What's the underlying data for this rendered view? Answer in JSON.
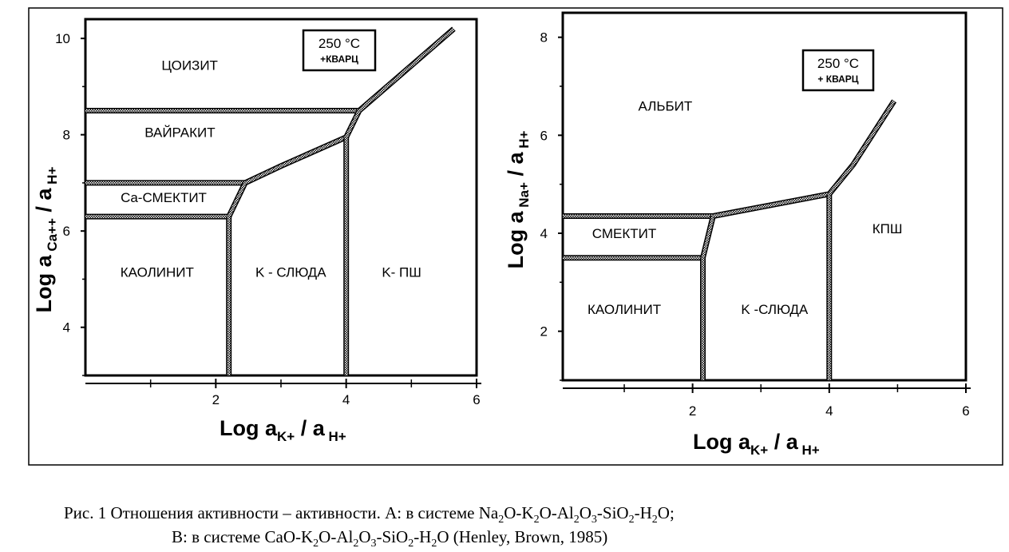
{
  "chart_data": [
    {
      "type": "phase-diagram",
      "panel": "left",
      "temperature_label": "250 °C",
      "note_label": "+КВАРЦ",
      "xlabel": {
        "main": "Log  a",
        "sub1": "K+",
        "sep": "/ a",
        "sub2": "H+"
      },
      "ylabel": {
        "main": "Log  a",
        "sub1": "Ca++",
        "sep": "/ a",
        "sub2": "H+"
      },
      "x_ticks": [
        "2",
        "4",
        "6"
      ],
      "y_ticks": [
        "4",
        "6",
        "8",
        "10"
      ],
      "xlim": [
        0,
        6
      ],
      "ylim": [
        3,
        10.4
      ],
      "fields": [
        {
          "name": "ЦОИЗИТ",
          "x": 1.6,
          "y": 9.35
        },
        {
          "name": "ВАЙРАКИТ",
          "x": 1.45,
          "y": 7.95
        },
        {
          "name": "Ca-СМЕКТИТ",
          "x": 1.2,
          "y": 6.6
        },
        {
          "name": "КАОЛИНИТ",
          "x": 1.1,
          "y": 5.05
        },
        {
          "name": "K - СЛЮДА",
          "x": 3.15,
          "y": 5.05
        },
        {
          "name": "K- ПШ",
          "x": 4.85,
          "y": 5.05
        }
      ],
      "boundaries": [
        {
          "name": "zoisite-wairakite",
          "points": [
            [
              0,
              8.5
            ],
            [
              4.2,
              8.5
            ]
          ]
        },
        {
          "name": "wairakite-smectite",
          "points": [
            [
              0,
              7.0
            ],
            [
              2.45,
              7.0
            ]
          ]
        },
        {
          "name": "smectite-kaolinite",
          "points": [
            [
              0,
              6.3
            ],
            [
              2.2,
              6.3
            ]
          ]
        },
        {
          "name": "kaolinite-mica",
          "points": [
            [
              2.2,
              3.0
            ],
            [
              2.2,
              6.3
            ]
          ]
        },
        {
          "name": "smectite-mica",
          "points": [
            [
              2.2,
              6.3
            ],
            [
              2.45,
              7.0
            ]
          ]
        },
        {
          "name": "wairakite-mica",
          "points": [
            [
              2.45,
              7.0
            ],
            [
              3.0,
              7.35
            ],
            [
              4.0,
              7.95
            ]
          ]
        },
        {
          "name": "mica-kfeldspar",
          "points": [
            [
              4.0,
              3.0
            ],
            [
              4.0,
              7.95
            ]
          ]
        },
        {
          "name": "wairakite-kfeldspar",
          "points": [
            [
              4.0,
              7.95
            ],
            [
              4.2,
              8.5
            ]
          ]
        },
        {
          "name": "zoisite-kfeldspar",
          "points": [
            [
              4.2,
              8.5
            ],
            [
              5.65,
              10.2
            ]
          ]
        }
      ]
    },
    {
      "type": "phase-diagram",
      "panel": "right",
      "temperature_label": "250 °C",
      "note_label": "+ КВАРЦ",
      "xlabel": {
        "main": "Log  a",
        "sub1": "K+",
        "sep": "/ a",
        "sub2": "H+"
      },
      "ylabel": {
        "main": "Log  a",
        "sub1": "Na+",
        "sep": "/ a",
        "sub2": "H+"
      },
      "x_ticks": [
        "2",
        "4",
        "6"
      ],
      "y_ticks": [
        "2",
        "4",
        "6",
        "8"
      ],
      "xlim": [
        0.1,
        6
      ],
      "ylim": [
        1,
        8.5
      ],
      "fields": [
        {
          "name": "АЛЬБИТ",
          "x": 1.6,
          "y": 6.5
        },
        {
          "name": "СМЕКТИТ",
          "x": 1.0,
          "y": 3.9
        },
        {
          "name": "КАОЛИНИТ",
          "x": 1.0,
          "y": 2.35
        },
        {
          "name": "K -СЛЮДА",
          "x": 3.2,
          "y": 2.35
        },
        {
          "name": "КПШ",
          "x": 4.85,
          "y": 4.0
        }
      ],
      "boundaries": [
        {
          "name": "albite-smectite",
          "points": [
            [
              0.1,
              4.35
            ],
            [
              2.3,
              4.35
            ]
          ]
        },
        {
          "name": "smectite-kaolinite",
          "points": [
            [
              0.1,
              3.5
            ],
            [
              2.15,
              3.5
            ]
          ]
        },
        {
          "name": "kaolinite-mica",
          "points": [
            [
              2.15,
              1.0
            ],
            [
              2.15,
              3.5
            ]
          ]
        },
        {
          "name": "smectite-mica",
          "points": [
            [
              2.15,
              3.5
            ],
            [
              2.3,
              4.35
            ]
          ]
        },
        {
          "name": "albite-mica",
          "points": [
            [
              2.3,
              4.35
            ],
            [
              4.0,
              4.8
            ]
          ]
        },
        {
          "name": "mica-kfeldspar",
          "points": [
            [
              4.0,
              1.0
            ],
            [
              4.0,
              4.8
            ]
          ]
        },
        {
          "name": "albite-kfeldspar",
          "points": [
            [
              4.0,
              4.8
            ],
            [
              4.35,
              5.4
            ],
            [
              4.95,
              6.7
            ]
          ]
        }
      ]
    }
  ],
  "caption": {
    "line1_prefix": "Рис. 1 Отношения активности – активности. А: в системе  ",
    "line1_formula": [
      {
        "t": "Na"
      },
      {
        "s": "2"
      },
      {
        "t": "O-K"
      },
      {
        "s": "2"
      },
      {
        "t": "O-Al"
      },
      {
        "s": "2"
      },
      {
        "t": "O"
      },
      {
        "s": "3"
      },
      {
        "t": "-SiO"
      },
      {
        "s": "2"
      },
      {
        "t": "-H"
      },
      {
        "s": "2"
      },
      {
        "t": "O;"
      }
    ],
    "line2_prefix": "В:  в системе ",
    "line2_formula": [
      {
        "t": "CaO-K"
      },
      {
        "s": "2"
      },
      {
        "t": "O-Al"
      },
      {
        "s": "2"
      },
      {
        "t": "O"
      },
      {
        "s": "3"
      },
      {
        "t": "-SiO"
      },
      {
        "s": "2"
      },
      {
        "t": "-H"
      },
      {
        "s": "2"
      },
      {
        "t": "O (Henley, Brown, 1985)"
      }
    ]
  }
}
